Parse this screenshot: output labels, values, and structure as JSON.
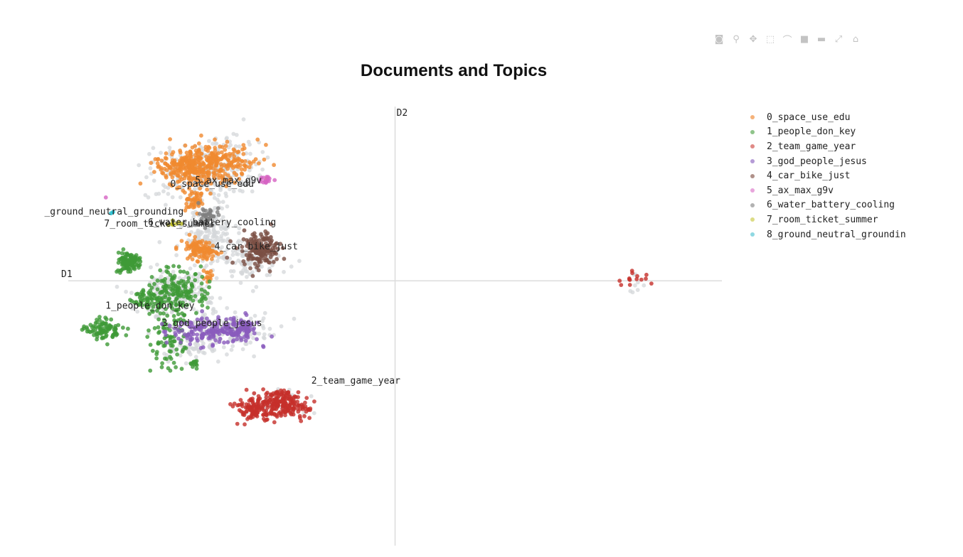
{
  "chart_data": {
    "type": "scatter",
    "title": "Documents and Topics",
    "xlabel": "D1",
    "ylabel": "D2",
    "xlim": [
      -10.0,
      10.0
    ],
    "ylim": [
      -7.6,
      5.0
    ],
    "grid": false,
    "legend_position": "right",
    "outlier_color": "#d4d7da",
    "series": [
      {
        "name": "0_space_use_edu",
        "color": "#f08a2f",
        "label": "0_space_use_edu",
        "label_at": [
          -5.6,
          2.7
        ],
        "clusters": [
          {
            "cx": -5.8,
            "cy": 3.35,
            "rx": 1.4,
            "ry": 0.55,
            "n": 320,
            "seed": 11
          },
          {
            "cx": -6.4,
            "cy": 3.25,
            "rx": 0.6,
            "ry": 0.45,
            "n": 90,
            "seed": 12
          },
          {
            "cx": -6.15,
            "cy": 2.35,
            "rx": 0.35,
            "ry": 0.3,
            "n": 50,
            "seed": 13
          },
          {
            "cx": -5.95,
            "cy": 0.9,
            "rx": 0.45,
            "ry": 0.3,
            "n": 110,
            "seed": 14
          },
          {
            "cx": -5.75,
            "cy": 0.15,
            "rx": 0.2,
            "ry": 0.2,
            "n": 14,
            "seed": 15
          }
        ]
      },
      {
        "name": "1_people_don_key",
        "color": "#3e9a37",
        "label": "1_people_don_key",
        "label_at": [
          -7.5,
          -0.8
        ],
        "clusters": [
          {
            "cx": -8.15,
            "cy": 0.55,
            "rx": 0.35,
            "ry": 0.28,
            "n": 120,
            "seed": 21
          },
          {
            "cx": -6.7,
            "cy": -0.3,
            "rx": 0.9,
            "ry": 0.6,
            "n": 170,
            "seed": 22
          },
          {
            "cx": -7.5,
            "cy": -0.55,
            "rx": 0.5,
            "ry": 0.3,
            "n": 60,
            "seed": 23
          },
          {
            "cx": -8.9,
            "cy": -1.4,
            "rx": 0.6,
            "ry": 0.35,
            "n": 90,
            "seed": 24
          },
          {
            "cx": -6.9,
            "cy": -1.7,
            "rx": 0.6,
            "ry": 0.8,
            "n": 80,
            "seed": 25
          },
          {
            "cx": -6.15,
            "cy": -2.35,
            "rx": 0.12,
            "ry": 0.15,
            "n": 14,
            "seed": 26
          }
        ]
      },
      {
        "name": "2_team_game_year",
        "color": "#c6302b",
        "label": "2_team_game_year",
        "label_at": [
          -1.2,
          -2.95
        ],
        "clusters": [
          {
            "cx": -3.55,
            "cy": -3.55,
            "rx": 0.85,
            "ry": 0.4,
            "n": 230,
            "seed": 31
          },
          {
            "cx": -4.4,
            "cy": -3.75,
            "rx": 0.4,
            "ry": 0.25,
            "n": 60,
            "seed": 32
          },
          {
            "cx": 7.3,
            "cy": 0.0,
            "rx": 0.5,
            "ry": 0.3,
            "n": 14,
            "seed": 33
          }
        ]
      },
      {
        "name": "3_god_people_jesus",
        "color": "#8a5bbd",
        "label": "3_god_people_jesus",
        "label_at": [
          -5.6,
          -1.3
        ],
        "clusters": [
          {
            "cx": -5.6,
            "cy": -1.45,
            "rx": 1.4,
            "ry": 0.35,
            "n": 180,
            "seed": 41
          },
          {
            "cx": -4.7,
            "cy": -1.35,
            "rx": 0.45,
            "ry": 0.3,
            "n": 60,
            "seed": 42
          }
        ]
      },
      {
        "name": "4_car_bike_just",
        "color": "#7a4f44",
        "label": "4_car_bike_just",
        "label_at": [
          -4.25,
          0.9
        ],
        "clusters": [
          {
            "cx": -4.15,
            "cy": 0.9,
            "rx": 0.55,
            "ry": 0.5,
            "n": 180,
            "seed": 51
          }
        ]
      },
      {
        "name": "5_ax_max_g9v",
        "color": "#d663c3",
        "label": "5_ax_max_g9v",
        "label_at": [
          -5.1,
          2.8
        ],
        "clusters": [
          {
            "cx": -3.95,
            "cy": 2.9,
            "rx": 0.2,
            "ry": 0.12,
            "n": 16,
            "seed": 61
          },
          {
            "cx": -8.9,
            "cy": 2.4,
            "rx": 0.03,
            "ry": 0.03,
            "n": 1,
            "seed": 62
          }
        ]
      },
      {
        "name": "6_water_battery_cooling",
        "color": "#7f7f7f",
        "label": "6_water_battery_cooling",
        "label_at": [
          -5.6,
          1.6
        ],
        "clusters": [
          {
            "cx": -5.7,
            "cy": 1.8,
            "rx": 0.3,
            "ry": 0.35,
            "n": 40,
            "seed": 71
          }
        ]
      },
      {
        "name": "7_room_ticket_summer",
        "color": "#bdbd22",
        "label": "7_room_ticket_summer",
        "label_at": [
          -7.2,
          1.55
        ],
        "clusters": [
          {
            "cx": -6.7,
            "cy": 1.65,
            "rx": 0.25,
            "ry": 0.1,
            "n": 8,
            "seed": 81
          }
        ]
      },
      {
        "name": "8_ground_neutral_grounding",
        "color": "#18becf",
        "label": "_ground_neutral_grounding",
        "label_at": [
          -8.6,
          1.9
        ],
        "clusters": [
          {
            "cx": -8.65,
            "cy": 1.95,
            "rx": 0.05,
            "ry": 0.05,
            "n": 2,
            "seed": 91
          }
        ]
      }
    ],
    "outliers": [
      {
        "cx": -5.7,
        "cy": 3.1,
        "rx": 1.6,
        "ry": 0.9,
        "n": 280,
        "seed": 101
      },
      {
        "cx": -5.8,
        "cy": 1.3,
        "rx": 0.9,
        "ry": 0.8,
        "n": 160,
        "seed": 102
      },
      {
        "cx": -4.3,
        "cy": 0.7,
        "rx": 0.9,
        "ry": 0.6,
        "n": 120,
        "seed": 103
      },
      {
        "cx": -6.8,
        "cy": -0.3,
        "rx": 1.2,
        "ry": 0.7,
        "n": 180,
        "seed": 104
      },
      {
        "cx": -5.3,
        "cy": -1.4,
        "rx": 1.6,
        "ry": 0.5,
        "n": 160,
        "seed": 105
      },
      {
        "cx": -6.2,
        "cy": -2.0,
        "rx": 0.9,
        "ry": 0.4,
        "n": 50,
        "seed": 106
      },
      {
        "cx": -3.6,
        "cy": -3.5,
        "rx": 1.0,
        "ry": 0.4,
        "n": 40,
        "seed": 107
      },
      {
        "cx": 7.3,
        "cy": 0.0,
        "rx": 0.5,
        "ry": 0.3,
        "n": 8,
        "seed": 108
      }
    ]
  },
  "legend": [
    {
      "label": "0_space_use_edu",
      "color": "#f5b27a"
    },
    {
      "label": "1_people_don_key",
      "color": "#8fc48a"
    },
    {
      "label": "2_team_game_year",
      "color": "#e08a86"
    },
    {
      "label": "3_god_people_jesus",
      "color": "#b59bd6"
    },
    {
      "label": "4_car_bike_just",
      "color": "#b0918a"
    },
    {
      "label": "5_ax_max_g9v",
      "color": "#e8a6dc"
    },
    {
      "label": "6_water_battery_cooling",
      "color": "#b2b2b2"
    },
    {
      "label": "7_room_ticket_summer",
      "color": "#dcdc86"
    },
    {
      "label": "8_ground_neutral_groundin",
      "color": "#8fd8e2"
    }
  ],
  "modebar": [
    {
      "icon": "camera-icon",
      "glyph": "◙"
    },
    {
      "icon": "zoom-icon",
      "glyph": "⚲"
    },
    {
      "icon": "pan-icon",
      "glyph": "✥"
    },
    {
      "icon": "box-select-icon",
      "glyph": "⬚"
    },
    {
      "icon": "lasso-icon",
      "glyph": "⌒"
    },
    {
      "icon": "zoom-in-icon",
      "glyph": "■"
    },
    {
      "icon": "zoom-out-icon",
      "glyph": "▬"
    },
    {
      "icon": "autoscale-icon",
      "glyph": "⤢"
    },
    {
      "icon": "reset-axes-icon",
      "glyph": "⌂"
    }
  ]
}
